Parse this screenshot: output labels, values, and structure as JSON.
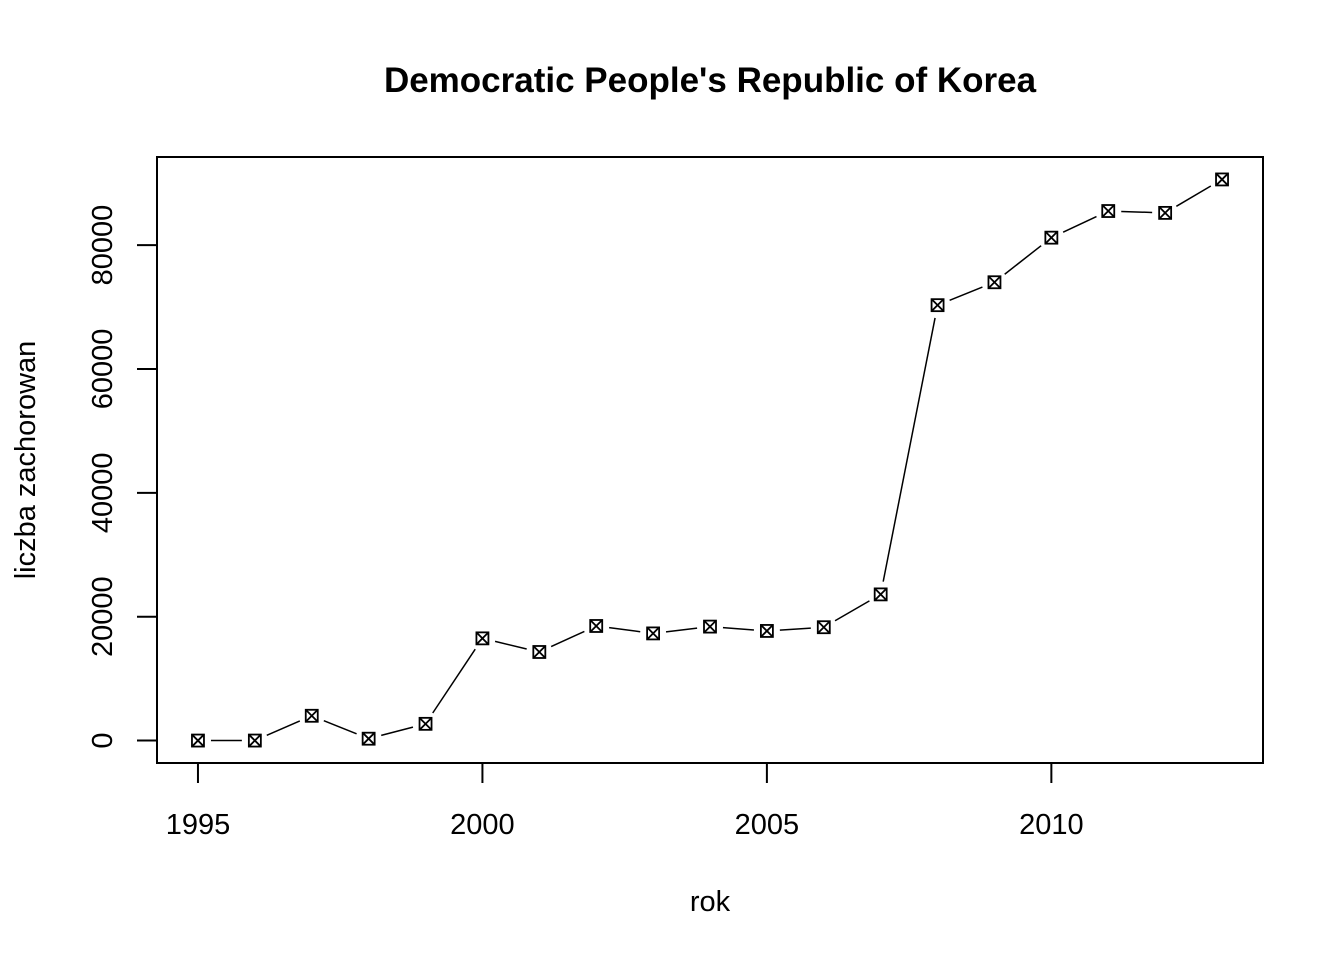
{
  "chart_data": {
    "type": "line",
    "title": "Democratic People's Republic of Korea",
    "xlabel": "rok",
    "ylabel": "liczba zachorowan",
    "x": [
      1995,
      1996,
      1997,
      1998,
      1999,
      2000,
      2001,
      2002,
      2003,
      2004,
      2005,
      2006,
      2007,
      2008,
      2009,
      2010,
      2011,
      2012,
      2013
    ],
    "series": [
      {
        "values": [
          0,
          0,
          4000,
          300,
          2700,
          16500,
          14300,
          18500,
          17300,
          18400,
          17700,
          18300,
          23600,
          70300,
          74000,
          81200,
          85500,
          85200,
          90600
        ]
      }
    ],
    "xlim": [
      1994.28,
      2013.72
    ],
    "ylim": [
      -3624,
      94224
    ],
    "xticks": [
      1995,
      2000,
      2005,
      2010
    ],
    "yticks": [
      0,
      20000,
      40000,
      60000,
      80000
    ],
    "marker": "box-x",
    "grid": false
  }
}
